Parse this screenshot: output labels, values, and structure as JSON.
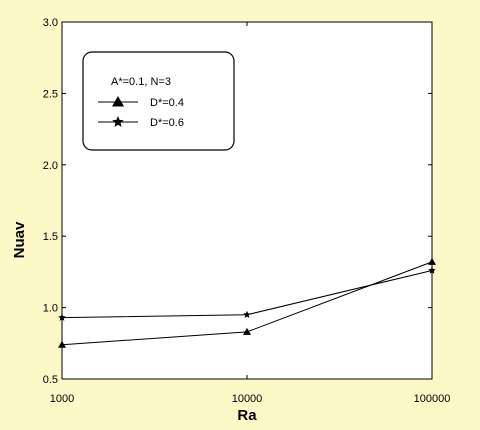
{
  "chart_data": {
    "type": "line",
    "title": "",
    "xlabel": "Ra",
    "ylabel": "Nuav",
    "x_scale": "log",
    "x": [
      1000,
      10000,
      100000
    ],
    "x_tick_labels": [
      "1000",
      "10000",
      "100000"
    ],
    "ylim": [
      0.5,
      3.0
    ],
    "y_ticks": [
      0.5,
      1.0,
      1.5,
      2.0,
      2.5,
      3.0
    ],
    "y_tick_labels": [
      "0.5",
      "1.0",
      "1.5",
      "2.0",
      "2.5",
      "3.0"
    ],
    "grid": false,
    "legend_position": "top-left",
    "legend_title": "A*=0.1, N=3",
    "series": [
      {
        "name": "D*=0.4",
        "marker": "triangle",
        "values": [
          0.74,
          0.83,
          1.32
        ]
      },
      {
        "name": "D*=0.6",
        "marker": "star",
        "values": [
          0.93,
          0.95,
          1.26
        ]
      }
    ],
    "colors": {
      "background": "#fdf8c8",
      "plot": "#ffffff",
      "line": "#000000"
    }
  }
}
